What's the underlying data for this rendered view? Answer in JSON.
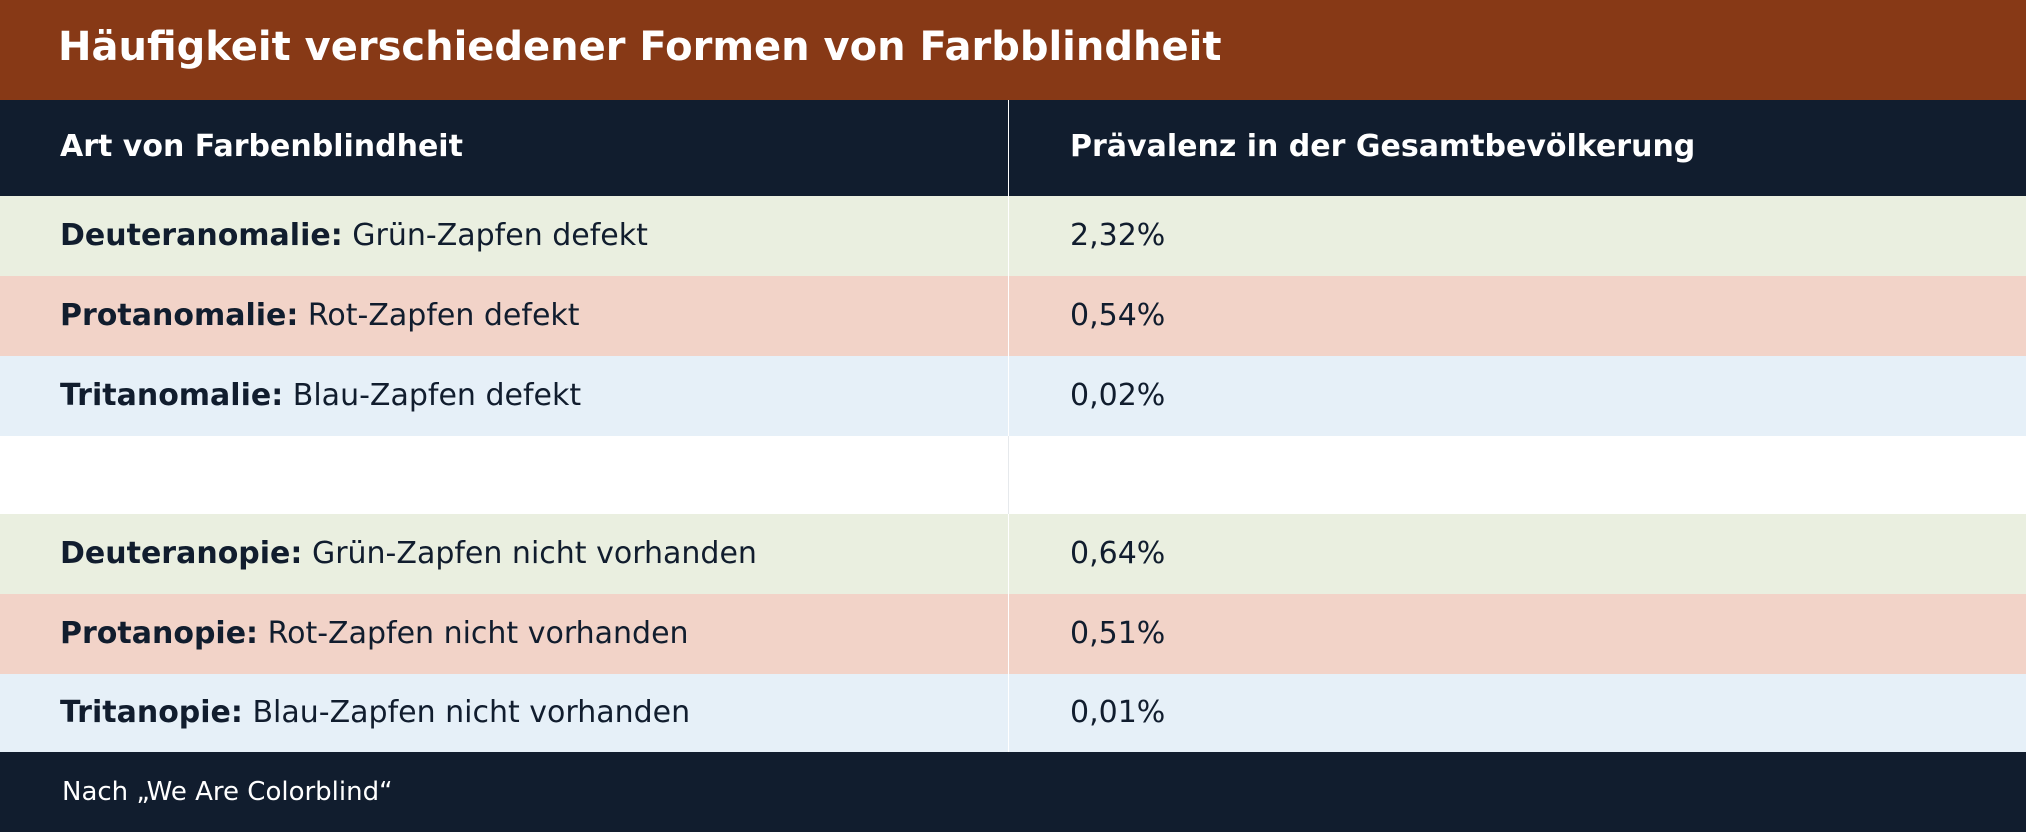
{
  "title": "Häufigkeit verschiedener Formen von Farbblindheit",
  "table": {
    "headers": [
      "Art von Farbenblindheit",
      "Prävalenz in der Gesamtbevölkerung"
    ],
    "rows": [
      {
        "term": "Deuteranomalie:",
        "description": "Grün-Zapfen defekt",
        "prevalence": "2,32%"
      },
      {
        "term": "Protanomalie:",
        "description": "Rot-Zapfen defekt",
        "prevalence": "0,54%"
      },
      {
        "term": "Tritanomalie:",
        "description": "Blau-Zapfen defekt",
        "prevalence": "0,02%"
      },
      {
        "term": "Deuteranopie:",
        "description": "Grün-Zapfen nicht vorhanden",
        "prevalence": "0,64%"
      },
      {
        "term": "Protanopie:",
        "description": "Rot-Zapfen nicht vorhanden",
        "prevalence": "0,51%"
      },
      {
        "term": "Tritanopie:",
        "description": "Blau-Zapfen nicht vorhanden",
        "prevalence": "0,01%"
      }
    ]
  },
  "footer": "Nach „We Are Colorblind“",
  "colors": {
    "title_bar": "#873916",
    "header_and_footer": "#111d2e",
    "green_row": "#eaefe0",
    "red_row": "#f2d3c8",
    "blue_row": "#e6f0f8",
    "text": "#111d2e"
  }
}
